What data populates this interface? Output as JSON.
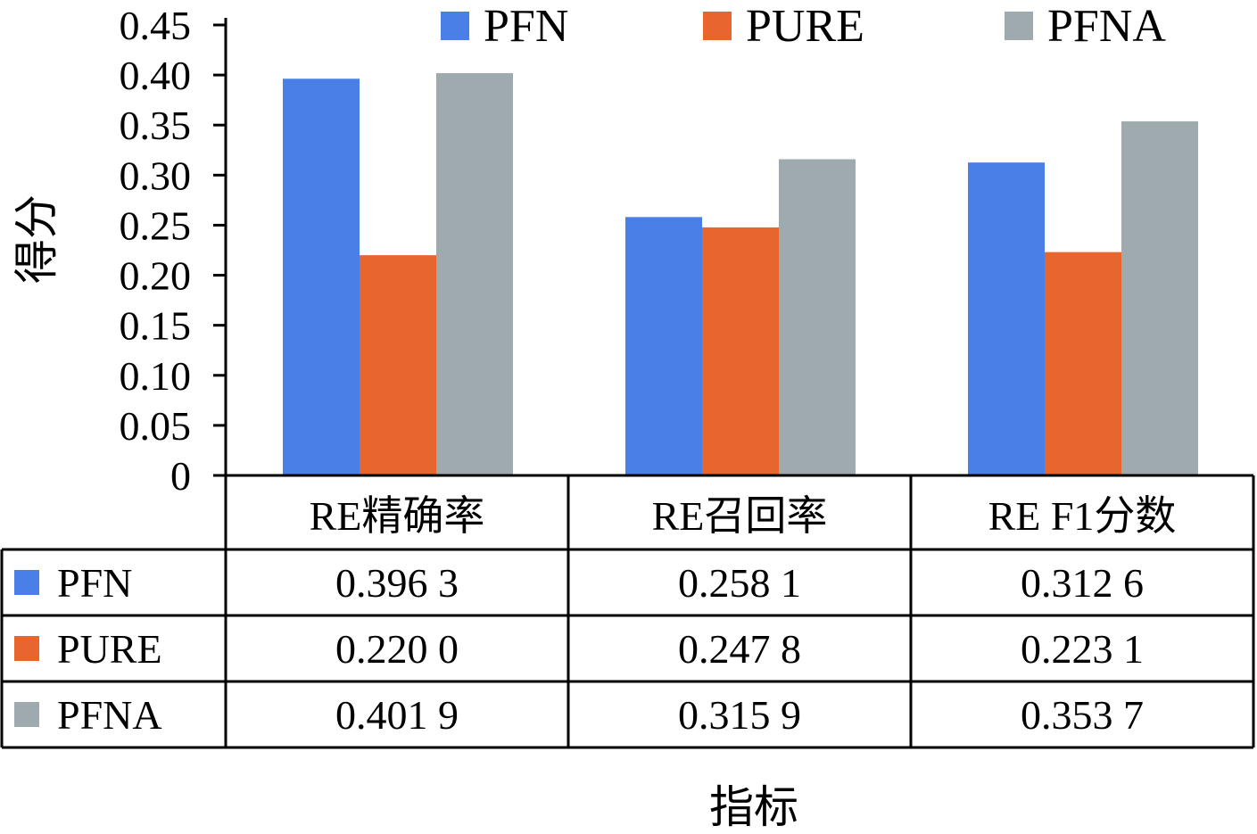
{
  "chart_data": {
    "type": "bar",
    "ylabel": "得分",
    "xlabel": "指标",
    "ylim": [
      0,
      0.45
    ],
    "yticks": [
      "0",
      "0.05",
      "0.10",
      "0.15",
      "0.20",
      "0.25",
      "0.30",
      "0.35",
      "0.40",
      "0.45"
    ],
    "categories": [
      "RE精确率",
      "RE召回率",
      "RE F1分数"
    ],
    "series": [
      {
        "name": "PFN",
        "color": "#4a7fe8",
        "values": [
          0.3963,
          0.2581,
          0.3126
        ],
        "labels": [
          "0.396 3",
          "0.258 1",
          "0.312 6"
        ]
      },
      {
        "name": "PURE",
        "color": "#e8662e",
        "values": [
          0.22,
          0.2478,
          0.2231
        ],
        "labels": [
          "0.220 0",
          "0.247 8",
          "0.223 1"
        ]
      },
      {
        "name": "PFNA",
        "color": "#9eaaad",
        "values": [
          0.4019,
          0.3159,
          0.3537
        ],
        "labels": [
          "0.401 9",
          "0.315 9",
          "0.353 7"
        ]
      }
    ],
    "legend_position": "top",
    "grid": false,
    "data_table": true
  }
}
